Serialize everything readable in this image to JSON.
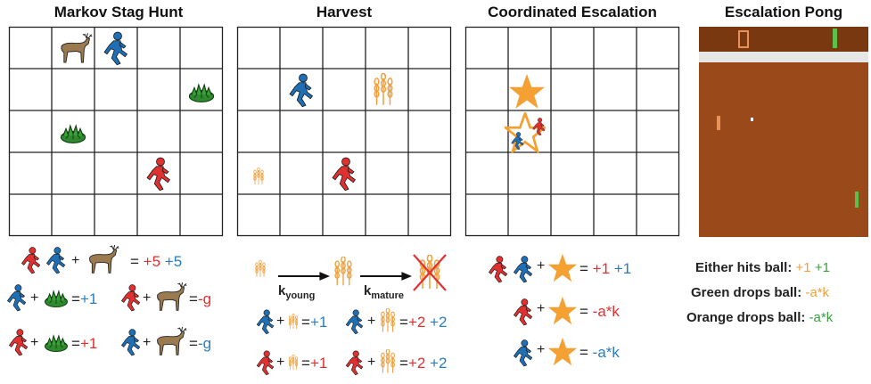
{
  "panels": [
    {
      "title": "Markov Stag Hunt"
    },
    {
      "title": "Harvest"
    },
    {
      "title": "Coordinated Escalation"
    },
    {
      "title": "Escalation Pong"
    }
  ],
  "stag_hunt": {
    "eq_main": {
      "eq": "=",
      "red": "+5",
      "blue": "+5"
    },
    "blue_plant": {
      "eq": "=",
      "val": "+1"
    },
    "red_stag": {
      "eq": "=",
      "val": "-g"
    },
    "red_plant": {
      "eq": "=",
      "val": "+1"
    },
    "blue_stag": {
      "eq": "=",
      "val": "-g"
    }
  },
  "harvest": {
    "k_young": {
      "base": "k",
      "sub": "young"
    },
    "k_mature": {
      "base": "k",
      "sub": "mature"
    },
    "rows": [
      {
        "young_eq": "=",
        "young_val": "+1",
        "mature_eq": "=",
        "mature_red": "+2",
        "mature_blue": "+2"
      },
      {
        "young_eq": "=",
        "young_val": "+1",
        "mature_eq": "=",
        "mature_red": "+2",
        "mature_blue": "+2"
      }
    ]
  },
  "escalation": {
    "both": {
      "eq": "=",
      "red": "+1",
      "blue": "+1"
    },
    "red_only": {
      "eq": "=",
      "val": "-a*k"
    },
    "blue_only": {
      "eq": "=",
      "val": "-a*k"
    }
  },
  "pong": {
    "colors": {
      "field": "#9a4a1a",
      "top": "#7a3810",
      "band": "#e6e6e6",
      "orange": "#e8925a",
      "green": "#5bbf4a"
    },
    "lines": [
      {
        "label": "Either hits ball:",
        "v1": "+1",
        "v2": "+1"
      },
      {
        "label": "Green drops ball:",
        "v1": "-a*k"
      },
      {
        "label": "Orange drops ball:",
        "v1": "-a*k"
      }
    ]
  }
}
